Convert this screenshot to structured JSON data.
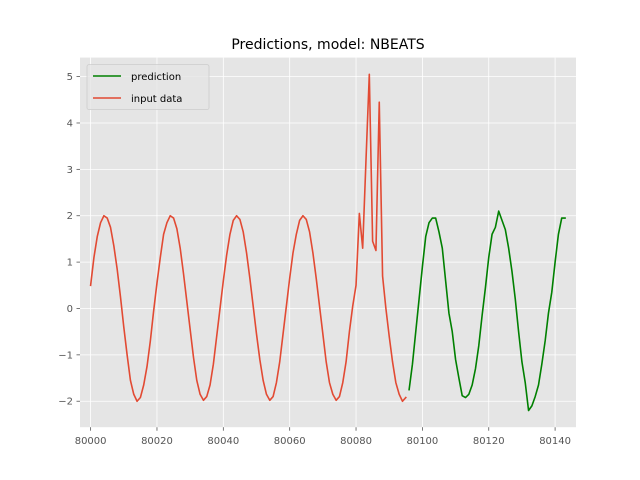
{
  "chart_data": {
    "type": "line",
    "title": "Predictions, model: NBEATS",
    "xlabel": "",
    "ylabel": "",
    "xlim": [
      79996.8,
      80146.3
    ],
    "ylim": [
      -2.56,
      5.41
    ],
    "xticks": [
      80000,
      80020,
      80040,
      80060,
      80080,
      80100,
      80120,
      80140
    ],
    "yticks": [
      -2,
      -1,
      0,
      1,
      2,
      3,
      4,
      5
    ],
    "ytick_labels": [
      "−2",
      "−1",
      "0",
      "1",
      "2",
      "3",
      "4",
      "5"
    ],
    "grid": true,
    "legend_position": "top-left",
    "series": [
      {
        "name": "prediction",
        "color": "#008000",
        "x": [
          80096,
          80097,
          80098,
          80099,
          80100,
          80101,
          80102,
          80103,
          80104,
          80105,
          80106,
          80107,
          80108,
          80109,
          80110,
          80111,
          80112,
          80113,
          80114,
          80115,
          80116,
          80117,
          80118,
          80119,
          80120,
          80121,
          80122,
          80123,
          80124,
          80125,
          80126,
          80127,
          80128,
          80129,
          80130,
          80131,
          80132,
          80133,
          80134,
          80135,
          80136,
          80137,
          80138,
          80139,
          80140,
          80141,
          80142,
          80143
        ],
        "y": [
          -1.75,
          -1.2,
          -0.5,
          0.2,
          0.9,
          1.55,
          1.85,
          1.95,
          1.95,
          1.65,
          1.3,
          0.6,
          -0.1,
          -0.5,
          -1.1,
          -1.5,
          -1.88,
          -1.92,
          -1.85,
          -1.65,
          -1.3,
          -0.8,
          -0.15,
          0.45,
          1.1,
          1.6,
          1.75,
          2.1,
          1.9,
          1.7,
          1.3,
          0.8,
          0.2,
          -0.5,
          -1.15,
          -1.6,
          -2.2,
          -2.1,
          -1.9,
          -1.65,
          -1.2,
          -0.7,
          -0.1,
          0.35,
          1.0,
          1.6,
          1.95,
          1.95
        ]
      },
      {
        "name": "input data",
        "color": "#e24a33",
        "x": [
          80000,
          80001,
          80002,
          80003,
          80004,
          80005,
          80006,
          80007,
          80008,
          80009,
          80010,
          80011,
          80012,
          80013,
          80014,
          80015,
          80016,
          80017,
          80018,
          80019,
          80020,
          80021,
          80022,
          80023,
          80024,
          80025,
          80026,
          80027,
          80028,
          80029,
          80030,
          80031,
          80032,
          80033,
          80034,
          80035,
          80036,
          80037,
          80038,
          80039,
          80040,
          80041,
          80042,
          80043,
          80044,
          80045,
          80046,
          80047,
          80048,
          80049,
          80050,
          80051,
          80052,
          80053,
          80054,
          80055,
          80056,
          80057,
          80058,
          80059,
          80060,
          80061,
          80062,
          80063,
          80064,
          80065,
          80066,
          80067,
          80068,
          80069,
          80070,
          80071,
          80072,
          80073,
          80074,
          80075,
          80076,
          80077,
          80078,
          80079,
          80080,
          80081,
          80082,
          80083,
          80084,
          80085,
          80086,
          80087,
          80088,
          80089,
          80090,
          80091,
          80092,
          80093,
          80094,
          80095
        ],
        "y": [
          0.5,
          1.1,
          1.55,
          1.85,
          2.0,
          1.95,
          1.75,
          1.35,
          0.85,
          0.25,
          -0.4,
          -1.0,
          -1.55,
          -1.85,
          -2.0,
          -1.92,
          -1.65,
          -1.25,
          -0.7,
          -0.05,
          0.55,
          1.1,
          1.6,
          1.85,
          2.0,
          1.95,
          1.72,
          1.3,
          0.75,
          0.15,
          -0.45,
          -1.05,
          -1.55,
          -1.85,
          -1.98,
          -1.9,
          -1.65,
          -1.2,
          -0.6,
          0.0,
          0.6,
          1.15,
          1.6,
          1.9,
          2.0,
          1.92,
          1.65,
          1.2,
          0.65,
          0.05,
          -0.55,
          -1.1,
          -1.55,
          -1.85,
          -1.98,
          -1.9,
          -1.6,
          -1.15,
          -0.55,
          0.05,
          0.65,
          1.2,
          1.6,
          1.9,
          2.0,
          1.92,
          1.65,
          1.2,
          0.65,
          0.05,
          -0.55,
          -1.15,
          -1.6,
          -1.85,
          -1.98,
          -1.9,
          -1.6,
          -1.15,
          -0.5,
          0.05,
          0.5,
          2.05,
          1.3,
          3.2,
          5.05,
          1.45,
          1.25,
          4.45,
          0.7,
          0.0,
          -0.6,
          -1.15,
          -1.6,
          -1.85,
          -2.0,
          -1.92
        ]
      }
    ]
  }
}
